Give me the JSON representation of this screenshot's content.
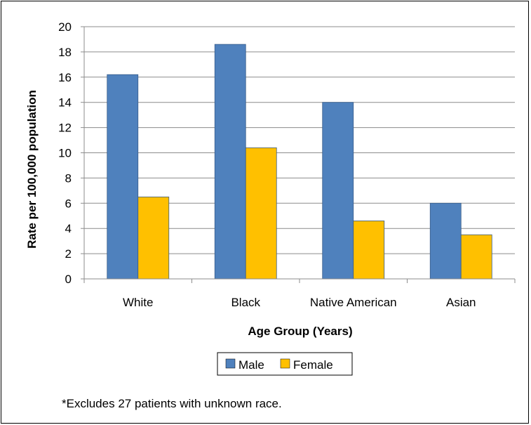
{
  "chart_data": {
    "type": "bar",
    "title": "",
    "xlabel": "Age Group (Years)",
    "ylabel": "Rate per 100,000 population",
    "categories": [
      "White",
      "Black",
      "Native American",
      "Asian"
    ],
    "series": [
      {
        "name": "Male",
        "color": "#4F81BD",
        "values": [
          16.2,
          18.6,
          14.0,
          6.0
        ]
      },
      {
        "name": "Female",
        "color": "#FFC000",
        "values": [
          6.5,
          10.4,
          4.6,
          3.5
        ]
      }
    ],
    "ylim": [
      0,
      20
    ],
    "yticks": [
      0,
      2,
      4,
      6,
      8,
      10,
      12,
      14,
      16,
      18,
      20
    ],
    "grid": true,
    "legend_position": "bottom"
  },
  "footnote": "*Excludes 27 patients with unknown race."
}
